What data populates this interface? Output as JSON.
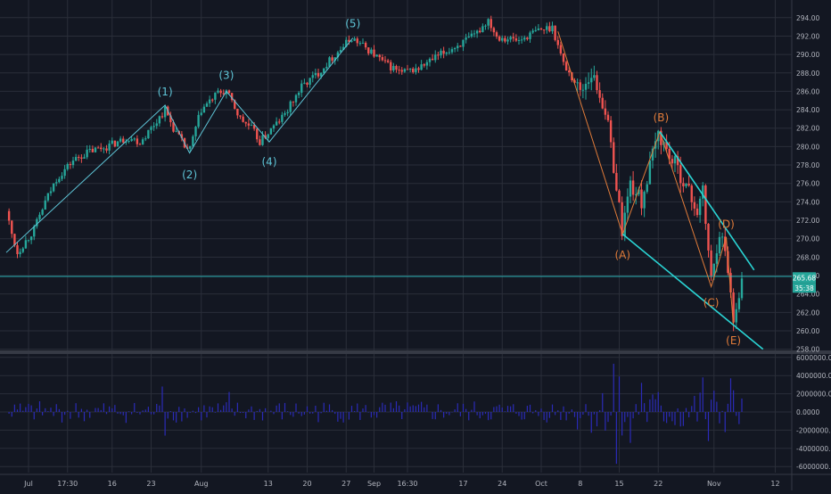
{
  "colors": {
    "background": "#131722",
    "grid": "#2a2e39",
    "axis_text": "#b2b5be",
    "candle_up": "#26a69a",
    "candle_down": "#ef5350",
    "wave_impulse": "#5ec4d6",
    "wave_corrective": "#e07b39",
    "trendline": "#2ad4d4",
    "volume_bar": "#2b2bb8",
    "price_tag": "#26a69a",
    "divider": "#363a45"
  },
  "chart_data": [
    {
      "type": "candlestick",
      "title": "",
      "ylabel": "",
      "xlabel": "",
      "grid": true,
      "y_axis_side": "right",
      "ylim": [
        257.5,
        295.2
      ],
      "y_ticks": [
        "258.00",
        "260.00",
        "262.00",
        "264.00",
        "266.00",
        "268.00",
        "270.00",
        "272.00",
        "274.00",
        "276.00",
        "278.00",
        "280.00",
        "282.00",
        "284.00",
        "286.00",
        "288.00",
        "290.00",
        "292.00",
        "294.00"
      ],
      "current_price_tag": "265.68",
      "countdown_tag": "35:38",
      "close_price": 265.68,
      "x_ticks": [
        {
          "label": "Jul",
          "day": 0
        },
        {
          "label": "17:30",
          "day": 7
        },
        {
          "label": "16",
          "day": 15
        },
        {
          "label": "23",
          "day": 22
        },
        {
          "label": "Aug",
          "day": 31
        },
        {
          "label": "13",
          "day": 43
        },
        {
          "label": "20",
          "day": 50
        },
        {
          "label": "27",
          "day": 57
        },
        {
          "label": "Sep",
          "day": 62
        },
        {
          "label": "16:30",
          "day": 68
        },
        {
          "label": "17",
          "day": 78
        },
        {
          "label": "24",
          "day": 85
        },
        {
          "label": "Oct",
          "day": 92
        },
        {
          "label": "8",
          "day": 99
        },
        {
          "label": "15",
          "day": 106
        },
        {
          "label": "22",
          "day": 113
        },
        {
          "label": "Nov",
          "day": 123
        },
        {
          "label": "12",
          "day": 134
        }
      ],
      "price_path": [
        [
          -4,
          273
        ],
        [
          -3,
          270.5
        ],
        [
          -2,
          268.5
        ],
        [
          1,
          271
        ],
        [
          3,
          274
        ],
        [
          5,
          276.5
        ],
        [
          8,
          278.5
        ],
        [
          11,
          279.5
        ],
        [
          14,
          280
        ],
        [
          18,
          281
        ],
        [
          20,
          280.5
        ],
        [
          22,
          282
        ],
        [
          24.5,
          284
        ],
        [
          26,
          282
        ],
        [
          28,
          280
        ],
        [
          28.9,
          279.5
        ],
        [
          30,
          282
        ],
        [
          31,
          284
        ],
        [
          34,
          285.8
        ],
        [
          35.5,
          286
        ],
        [
          38,
          283
        ],
        [
          40,
          282
        ],
        [
          41.5,
          280.5
        ],
        [
          43,
          281.5
        ],
        [
          46,
          283.5
        ],
        [
          49,
          286.5
        ],
        [
          52,
          288
        ],
        [
          55,
          290
        ],
        [
          58,
          291.8
        ],
        [
          61,
          290.5
        ],
        [
          64,
          289
        ],
        [
          67,
          288
        ],
        [
          70,
          288.5
        ],
        [
          74,
          290
        ],
        [
          77,
          291
        ],
        [
          80,
          292
        ],
        [
          82.5,
          293.8
        ],
        [
          84,
          292
        ],
        [
          88,
          291.5
        ],
        [
          91,
          292.5
        ],
        [
          94,
          293
        ],
        [
          96,
          289
        ],
        [
          99,
          286
        ],
        [
          101,
          288
        ],
        [
          103.5,
          284
        ],
        [
          105,
          278
        ],
        [
          106.5,
          271
        ],
        [
          108,
          276
        ],
        [
          110,
          274
        ],
        [
          112,
          279
        ],
        [
          113,
          281.5
        ],
        [
          115,
          279
        ],
        [
          117,
          277
        ],
        [
          120,
          273
        ],
        [
          121,
          275
        ],
        [
          122.5,
          265.5
        ],
        [
          124,
          271
        ],
        [
          125.5,
          267
        ],
        [
          126.5,
          261
        ],
        [
          127,
          263
        ],
        [
          128,
          265.6
        ]
      ],
      "volume_panel": {
        "y_ticks": [
          "6000000.0000",
          "4000000.0000",
          "2000000.0000",
          "0.0000",
          "-2000000.0000",
          "-4000000.0000",
          "-6000000.0000"
        ],
        "ylim": [
          -6700000,
          6500000
        ],
        "spikes": [
          {
            "day": 24,
            "value": 2800000
          },
          {
            "day": 24.6,
            "value": -2600000
          },
          {
            "day": 36,
            "value": 2200000
          },
          {
            "day": 105,
            "value": 5300000
          },
          {
            "day": 105.6,
            "value": -5700000
          },
          {
            "day": 106.2,
            "value": 3900000
          },
          {
            "day": 108,
            "value": -3400000
          },
          {
            "day": 110,
            "value": 3200000
          },
          {
            "day": 121,
            "value": 3800000
          },
          {
            "day": 122,
            "value": -3200000
          },
          {
            "day": 126,
            "value": 3700000
          }
        ]
      }
    }
  ],
  "annotations": {
    "wave_labels": [
      {
        "text": "(1)",
        "day": 24.5,
        "price": 285.9,
        "style": "impulse"
      },
      {
        "text": "(2)",
        "day": 28.9,
        "price": 276.9,
        "style": "impulse"
      },
      {
        "text": "(3)",
        "day": 35.5,
        "price": 287.7,
        "style": "impulse"
      },
      {
        "text": "(4)",
        "day": 43.2,
        "price": 278.3,
        "style": "impulse"
      },
      {
        "text": "(5)",
        "day": 58.2,
        "price": 293.3,
        "style": "impulse"
      },
      {
        "text": "(A)",
        "day": 106.6,
        "price": 268.2,
        "style": "corrective"
      },
      {
        "text": "(B)",
        "day": 113.5,
        "price": 283.1,
        "style": "corrective"
      },
      {
        "text": "(C)",
        "day": 122.5,
        "price": 263.0,
        "style": "corrective"
      },
      {
        "text": "(D)",
        "day": 125.2,
        "price": 271.5,
        "style": "corrective"
      },
      {
        "text": "(E)",
        "day": 126.5,
        "price": 258.9,
        "style": "corrective"
      }
    ],
    "impulse_path": [
      [
        -4,
        268.5
      ],
      [
        24.5,
        284.5
      ],
      [
        28.9,
        279.3
      ],
      [
        35.5,
        286
      ],
      [
        43.2,
        280.5
      ],
      [
        58.2,
        291.8
      ]
    ],
    "corrective_path": [
      [
        95,
        292.5
      ],
      [
        106.6,
        270.5
      ],
      [
        113.3,
        281.6
      ],
      [
        122.5,
        264.8
      ],
      [
        125.2,
        270.2
      ],
      [
        126.5,
        260.5
      ]
    ],
    "trendlines": [
      {
        "from": [
          106.6,
          270.5
        ],
        "to": [
          131.8,
          258.0
        ]
      },
      {
        "from": [
          113.3,
          281.6
        ],
        "to": [
          130.2,
          266.6
        ]
      }
    ],
    "horizontal_line": 265.9
  }
}
